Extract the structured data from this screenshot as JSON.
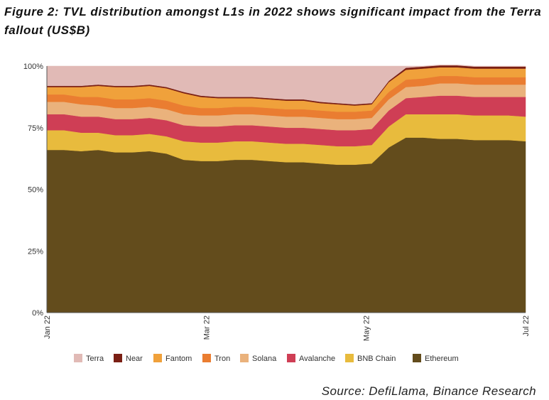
{
  "title": "Figure 2: TVL distribution amongst L1s in 2022 shows significant impact from the Terra fallout (US$B)",
  "source": "Source: DefiLlama, Binance Research",
  "chart_data": {
    "type": "area",
    "stacked": true,
    "normalized_percent": true,
    "x": [
      "Jan 1",
      "Jan 8",
      "Jan 15",
      "Jan 22",
      "Jan 29",
      "Feb 5",
      "Feb 12",
      "Feb 19",
      "Feb 26",
      "Mar 5",
      "Mar 12",
      "Mar 19",
      "Mar 26",
      "Apr 2",
      "Apr 9",
      "Apr 16",
      "Apr 23",
      "Apr 30",
      "May 7",
      "May 10",
      "May 12",
      "May 14",
      "May 21",
      "May 28",
      "Jun 4",
      "Jun 11",
      "Jun 18",
      "Jun 25",
      "Jul 2"
    ],
    "xticks": [
      "Jan 22",
      "Mar 22",
      "May 22",
      "Jul 22"
    ],
    "yticks": [
      "0%",
      "25%",
      "50%",
      "75%",
      "100%"
    ],
    "ylim": [
      0,
      100
    ],
    "series": [
      {
        "name": "Ethereum",
        "color": "#634c1c",
        "values": [
          66,
          66,
          65.5,
          66,
          65,
          65,
          65.5,
          64.5,
          62,
          61.5,
          61.5,
          62,
          62,
          61.5,
          61,
          61,
          60.5,
          60,
          60,
          60.5,
          67,
          71,
          71,
          70.5,
          70.5,
          70,
          70,
          70,
          69.5
        ]
      },
      {
        "name": "BNB Chain",
        "color": "#e8bb3d",
        "values": [
          8,
          8,
          7.5,
          7,
          7,
          7,
          7,
          7,
          7.5,
          7.5,
          7.5,
          7.5,
          7.5,
          7.5,
          7.5,
          7.5,
          7.5,
          7.5,
          7.5,
          7.5,
          8.5,
          9.5,
          9.5,
          10,
          10,
          10,
          10,
          10,
          10
        ]
      },
      {
        "name": "Avalanche",
        "color": "#cf3e55",
        "values": [
          6.5,
          6.5,
          6.5,
          6.5,
          6.5,
          6.5,
          6.5,
          6.5,
          6.5,
          6.5,
          6.5,
          6.5,
          6.5,
          6.5,
          6.5,
          6.5,
          6.5,
          6.5,
          6.5,
          6.5,
          6.5,
          6.5,
          7,
          7.5,
          7.5,
          7.5,
          7.5,
          7.5,
          8
        ]
      },
      {
        "name": "Solana",
        "color": "#eab27c",
        "values": [
          5,
          5,
          5,
          4.5,
          4.5,
          4.5,
          4.5,
          4.5,
          4.5,
          4.5,
          4.5,
          4.5,
          4.5,
          4.5,
          4.5,
          4.5,
          4.5,
          4.5,
          4.5,
          4.5,
          4.5,
          4.5,
          4.5,
          5,
          5,
          5,
          5,
          5,
          5
        ]
      },
      {
        "name": "Tron",
        "color": "#ea7d31",
        "values": [
          3,
          3,
          3,
          3.5,
          3.5,
          3.5,
          3.5,
          3.5,
          3.5,
          3,
          3,
          3,
          3,
          3,
          3,
          3,
          3,
          3,
          3,
          3,
          3,
          3,
          3,
          3,
          3,
          3,
          3,
          3,
          3
        ]
      },
      {
        "name": "Fantom",
        "color": "#f0a13b",
        "values": [
          3,
          3,
          4,
          4.5,
          5,
          5,
          5,
          5,
          5,
          4.5,
          4,
          3.5,
          3.5,
          3.5,
          3.5,
          3.5,
          3,
          3,
          2.5,
          2.5,
          4,
          4,
          4,
          3.5,
          3.5,
          3.5,
          3.5,
          3.5,
          3.5
        ]
      },
      {
        "name": "Near",
        "color": "#7a1f14",
        "values": [
          0.5,
          0.5,
          0.5,
          0.5,
          0.5,
          0.5,
          0.5,
          0.5,
          0.5,
          0.5,
          0.5,
          0.5,
          0.5,
          0.5,
          0.5,
          0.5,
          0.5,
          0.5,
          0.5,
          0.5,
          0.5,
          0.8,
          0.8,
          0.8,
          0.8,
          0.8,
          0.8,
          0.8,
          0.8
        ]
      },
      {
        "name": "Terra",
        "color": "#e1bab6",
        "values": [
          8,
          8,
          8,
          7.5,
          8,
          8,
          7.5,
          8.5,
          10.5,
          12,
          12.5,
          12.5,
          12.5,
          13,
          13.5,
          13.5,
          14.5,
          15,
          15.5,
          15,
          6,
          0.7,
          0.2,
          0.2,
          0.2,
          0.2,
          0.2,
          0.2,
          0.2
        ]
      }
    ],
    "legend_order": [
      "Terra",
      "Near",
      "Fantom",
      "Tron",
      "Solana",
      "Avalanche",
      "BNB Chain",
      "Ethereum"
    ],
    "legend_position": "bottom"
  }
}
